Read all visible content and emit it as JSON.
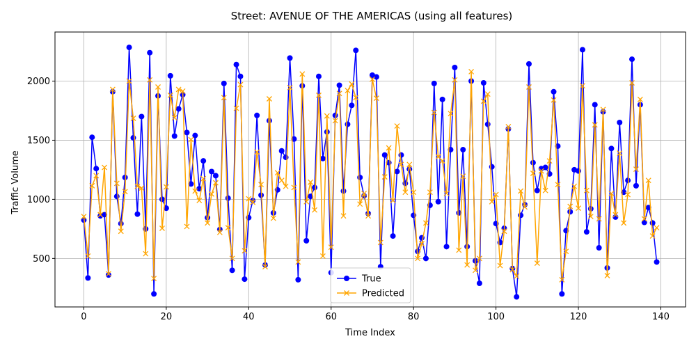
{
  "chart_data": {
    "type": "line",
    "title": "Street: AVENUE OF THE AMERICAS (using all features)",
    "xlabel": "Time Index",
    "ylabel": "Traffic Volume",
    "xlim": [
      -7,
      146
    ],
    "ylim": [
      90,
      2415
    ],
    "xticks": [
      0,
      20,
      40,
      60,
      80,
      100,
      120,
      140
    ],
    "yticks": [
      500,
      1000,
      1500,
      2000
    ],
    "grid": true,
    "legend_position": "lower-center",
    "series": [
      {
        "name": "True",
        "color": "#0000ff",
        "marker": "circle",
        "x": [
          0,
          1,
          2,
          3,
          4,
          5,
          6,
          7,
          8,
          9,
          10,
          11,
          12,
          13,
          14,
          15,
          16,
          17,
          18,
          19,
          20,
          21,
          22,
          23,
          24,
          25,
          26,
          27,
          28,
          29,
          30,
          31,
          32,
          33,
          34,
          35,
          36,
          37,
          38,
          39,
          40,
          41,
          42,
          43,
          44,
          45,
          46,
          47,
          48,
          49,
          50,
          51,
          52,
          53,
          54,
          55,
          56,
          57,
          58,
          59,
          60,
          61,
          62,
          63,
          64,
          65,
          66,
          67,
          68,
          69,
          70,
          71,
          72,
          73,
          74,
          75,
          76,
          77,
          78,
          79,
          80,
          81,
          82,
          83,
          84,
          85,
          86,
          87,
          88,
          89,
          90,
          91,
          92,
          93,
          94,
          95,
          96,
          97,
          98,
          99,
          100,
          101,
          102,
          103,
          104,
          105,
          106,
          107,
          108,
          109,
          110,
          111,
          112,
          113,
          114,
          115,
          116,
          117,
          118,
          119,
          120,
          121,
          122,
          123,
          124,
          125,
          126,
          127,
          128,
          129,
          130,
          131,
          132,
          133,
          134,
          135,
          136,
          137,
          138,
          139
        ],
        "values": [
          825,
          335,
          1525,
          1260,
          860,
          870,
          360,
          1910,
          1025,
          795,
          1185,
          2285,
          1520,
          875,
          1700,
          750,
          2240,
          200,
          1875,
          1000,
          925,
          2045,
          1535,
          1765,
          1885,
          1565,
          1130,
          1540,
          1090,
          1325,
          845,
          1235,
          1200,
          745,
          1980,
          1010,
          400,
          2140,
          2040,
          325,
          845,
          990,
          1710,
          1035,
          445,
          1665,
          885,
          1080,
          1410,
          1355,
          2195,
          1510,
          320,
          1960,
          650,
          1025,
          1100,
          2040,
          1345,
          1570,
          380,
          1710,
          1965,
          1070,
          1635,
          1795,
          2260,
          1185,
          1030,
          880,
          2050,
          2035,
          430,
          1375,
          1310,
          690,
          1235,
          1375,
          1135,
          1255,
          865,
          560,
          675,
          500,
          950,
          1980,
          980,
          1845,
          600,
          1420,
          2115,
          885,
          1420,
          600,
          2000,
          480,
          290,
          1985,
          1635,
          1275,
          795,
          635,
          755,
          1595,
          415,
          175,
          865,
          955,
          2145,
          1310,
          1075,
          1260,
          1270,
          1215,
          1910,
          1450,
          200,
          735,
          895,
          1250,
          1240,
          2265,
          725,
          920,
          1800,
          590,
          1740,
          420,
          1430,
          850,
          1650,
          1060,
          1160,
          2185,
          1115,
          1800,
          805,
          930,
          800,
          470
        ]
      },
      {
        "name": "Predicted",
        "color": "#ffa500",
        "marker": "x",
        "x": [
          0,
          1,
          2,
          3,
          4,
          5,
          6,
          7,
          8,
          9,
          10,
          11,
          12,
          13,
          14,
          15,
          16,
          17,
          18,
          19,
          20,
          21,
          22,
          23,
          24,
          25,
          26,
          27,
          28,
          29,
          30,
          31,
          32,
          33,
          34,
          35,
          36,
          37,
          38,
          39,
          40,
          41,
          42,
          43,
          44,
          45,
          46,
          47,
          48,
          49,
          50,
          51,
          52,
          53,
          54,
          55,
          56,
          57,
          58,
          59,
          60,
          61,
          62,
          63,
          64,
          65,
          66,
          67,
          68,
          69,
          70,
          71,
          72,
          73,
          74,
          75,
          76,
          77,
          78,
          79,
          80,
          81,
          82,
          83,
          84,
          85,
          86,
          87,
          88,
          89,
          90,
          91,
          92,
          93,
          94,
          95,
          96,
          97,
          98,
          99,
          100,
          101,
          102,
          103,
          104,
          105,
          106,
          107,
          108,
          109,
          110,
          111,
          112,
          113,
          114,
          115,
          116,
          117,
          118,
          119,
          120,
          121,
          122,
          123,
          124,
          125,
          126,
          127,
          128,
          129,
          130,
          131,
          132,
          133,
          134,
          135,
          136,
          137,
          138,
          139
        ],
        "values": [
          855,
          520,
          1115,
          1200,
          870,
          1270,
          370,
          1930,
          1135,
          730,
          1065,
          2000,
          1685,
          1110,
          1095,
          540,
          2010,
          330,
          1950,
          755,
          1105,
          1880,
          1690,
          1930,
          1915,
          770,
          1505,
          1070,
          990,
          1175,
          800,
          1045,
          1140,
          720,
          1860,
          760,
          500,
          1770,
          1970,
          565,
          1005,
          975,
          1400,
          1125,
          430,
          1850,
          840,
          1225,
          1160,
          1110,
          1945,
          1100,
          470,
          2060,
          980,
          1145,
          910,
          1880,
          520,
          1705,
          595,
          1665,
          1895,
          860,
          1920,
          1975,
          1860,
          960,
          1050,
          860,
          2015,
          1855,
          635,
          1190,
          1435,
          990,
          1620,
          1295,
          1060,
          1295,
          1060,
          500,
          625,
          800,
          1060,
          1735,
          1360,
          1325,
          1050,
          1725,
          2010,
          570,
          1195,
          445,
          2080,
          400,
          500,
          1830,
          1890,
          980,
          1040,
          440,
          730,
          1615,
          405,
          350,
          1070,
          935,
          1950,
          1220,
          460,
          1240,
          1075,
          1325,
          1840,
          1125,
          320,
          560,
          940,
          1110,
          925,
          1960,
          1075,
          855,
          1630,
          835,
          1760,
          355,
          1050,
          870,
          1390,
          800,
          1040,
          1985,
          1255,
          1845,
          835,
          1160,
          690,
          760
        ]
      }
    ]
  }
}
